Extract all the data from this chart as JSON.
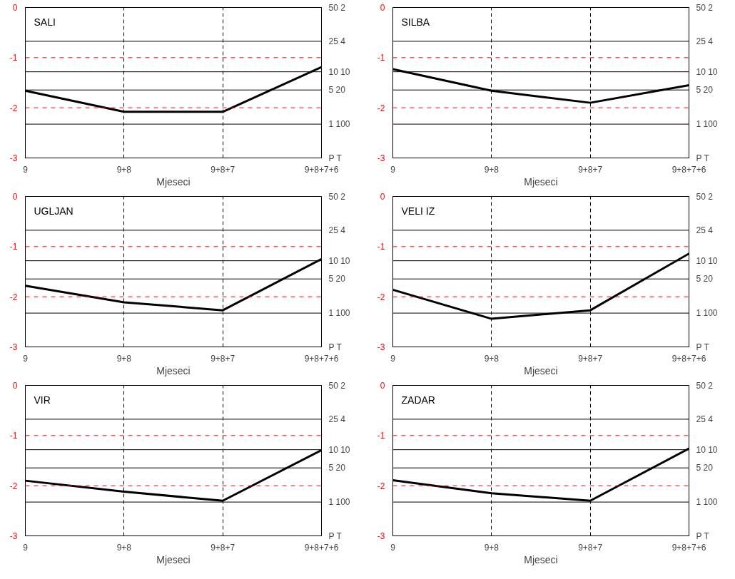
{
  "chart_data": [
    {
      "type": "line",
      "title": "SALI",
      "annotations": [
        "50 2",
        "25 4",
        "10 10",
        "5 20",
        "1 100",
        "P T"
      ],
      "xlabel": "Mjeseci",
      "categories": [
        "9",
        "9+8",
        "9+8+7",
        "9+8+7+6"
      ],
      "series": [
        {
          "color": "#000000",
          "values": [
            -1.66,
            -2.08,
            -2.08,
            -1.19
          ]
        }
      ],
      "ylim": [
        -3,
        0
      ],
      "yticks": [
        0,
        -1,
        -2,
        -3
      ],
      "ref_lines": [
        {
          "axis": "y",
          "value": -0.674,
          "color": "#000000"
        },
        {
          "axis": "y",
          "value": -1.282,
          "color": "#000000"
        },
        {
          "axis": "y",
          "value": -1.645,
          "color": "#000000"
        },
        {
          "axis": "y",
          "value": -2.326,
          "color": "#000000"
        },
        {
          "axis": "y",
          "value": -1,
          "color": "#ff0000",
          "line_style": "dashed"
        },
        {
          "axis": "y",
          "value": -2,
          "color": "#ff0000",
          "line_style": "dashed"
        }
      ],
      "grid": "x",
      "marker": "none",
      "line_style": "solid"
    },
    {
      "type": "line",
      "title": "SILBA",
      "annotations": [
        "50 2",
        "25 4",
        "10 10",
        "5 20",
        "1 100",
        "P T"
      ],
      "xlabel": "Mjeseci",
      "categories": [
        "9",
        "9+8",
        "9+8+7",
        "9+8+7+6"
      ],
      "series": [
        {
          "color": "#000000",
          "values": [
            -1.23,
            -1.66,
            -1.9,
            -1.55
          ]
        }
      ],
      "ylim": [
        -3,
        0
      ],
      "yticks": [
        0,
        -1,
        -2,
        -3
      ],
      "ref_lines": [
        {
          "axis": "y",
          "value": -0.674,
          "color": "#000000"
        },
        {
          "axis": "y",
          "value": -1.282,
          "color": "#000000"
        },
        {
          "axis": "y",
          "value": -1.645,
          "color": "#000000"
        },
        {
          "axis": "y",
          "value": -2.326,
          "color": "#000000"
        },
        {
          "axis": "y",
          "value": -1,
          "color": "#ff0000",
          "line_style": "dashed"
        },
        {
          "axis": "y",
          "value": -2,
          "color": "#ff0000",
          "line_style": "dashed"
        }
      ],
      "grid": "x",
      "marker": "none",
      "line_style": "solid"
    },
    {
      "type": "line",
      "title": "UGLJAN",
      "annotations": [
        "50 2",
        "25 4",
        "10 10",
        "5 20",
        "1 100",
        "P T"
      ],
      "xlabel": "Mjeseci",
      "categories": [
        "9",
        "9+8",
        "9+8+7",
        "9+8+7+6"
      ],
      "series": [
        {
          "color": "#000000",
          "values": [
            -1.78,
            -2.11,
            -2.27,
            -1.25
          ]
        }
      ],
      "ylim": [
        -3,
        0
      ],
      "yticks": [
        0,
        -1,
        -2,
        -3
      ],
      "ref_lines": [
        {
          "axis": "y",
          "value": -0.674,
          "color": "#000000"
        },
        {
          "axis": "y",
          "value": -1.282,
          "color": "#000000"
        },
        {
          "axis": "y",
          "value": -1.645,
          "color": "#000000"
        },
        {
          "axis": "y",
          "value": -2.326,
          "color": "#000000"
        },
        {
          "axis": "y",
          "value": -1,
          "color": "#ff0000",
          "line_style": "dashed"
        },
        {
          "axis": "y",
          "value": -2,
          "color": "#ff0000",
          "line_style": "dashed"
        }
      ],
      "grid": "x",
      "marker": "none",
      "line_style": "solid"
    },
    {
      "type": "line",
      "title": "VELI IZ",
      "annotations": [
        "50 2",
        "25 4",
        "10 10",
        "5 20",
        "1 100",
        "P T"
      ],
      "xlabel": "Mjeseci",
      "categories": [
        "9",
        "9+8",
        "9+8+7",
        "9+8+7+6"
      ],
      "series": [
        {
          "color": "#000000",
          "values": [
            -1.86,
            -2.44,
            -2.27,
            -1.14
          ]
        }
      ],
      "ylim": [
        -3,
        0
      ],
      "yticks": [
        0,
        -1,
        -2,
        -3
      ],
      "ref_lines": [
        {
          "axis": "y",
          "value": -0.674,
          "color": "#000000"
        },
        {
          "axis": "y",
          "value": -1.282,
          "color": "#000000"
        },
        {
          "axis": "y",
          "value": -1.645,
          "color": "#000000"
        },
        {
          "axis": "y",
          "value": -2.326,
          "color": "#000000"
        },
        {
          "axis": "y",
          "value": -1,
          "color": "#ff0000",
          "line_style": "dashed"
        },
        {
          "axis": "y",
          "value": -2,
          "color": "#ff0000",
          "line_style": "dashed"
        }
      ],
      "grid": "x",
      "marker": "none",
      "line_style": "solid"
    },
    {
      "type": "line",
      "title": "VIR",
      "annotations": [
        "50 2",
        "25 4",
        "10 10",
        "5 20",
        "1 100",
        "P T"
      ],
      "xlabel": "Mjeseci",
      "categories": [
        "9",
        "9+8",
        "9+8+7",
        "9+8+7+6"
      ],
      "series": [
        {
          "color": "#000000",
          "values": [
            -1.9,
            -2.12,
            -2.3,
            -1.29
          ]
        }
      ],
      "ylim": [
        -3,
        0
      ],
      "yticks": [
        0,
        -1,
        -2,
        -3
      ],
      "ref_lines": [
        {
          "axis": "y",
          "value": -0.674,
          "color": "#000000"
        },
        {
          "axis": "y",
          "value": -1.282,
          "color": "#000000"
        },
        {
          "axis": "y",
          "value": -1.645,
          "color": "#000000"
        },
        {
          "axis": "y",
          "value": -2.326,
          "color": "#000000"
        },
        {
          "axis": "y",
          "value": -1,
          "color": "#ff0000",
          "line_style": "dashed"
        },
        {
          "axis": "y",
          "value": -2,
          "color": "#ff0000",
          "line_style": "dashed"
        }
      ],
      "grid": "x",
      "marker": "none",
      "line_style": "solid"
    },
    {
      "type": "line",
      "title": "ZADAR",
      "annotations": [
        "50 2",
        "25 4",
        "10 10",
        "5 20",
        "1 100",
        "P T"
      ],
      "xlabel": "Mjeseci",
      "categories": [
        "9",
        "9+8",
        "9+8+7",
        "9+8+7+6"
      ],
      "series": [
        {
          "color": "#000000",
          "values": [
            -1.89,
            -2.15,
            -2.3,
            -1.26
          ]
        }
      ],
      "ylim": [
        -3,
        0
      ],
      "yticks": [
        0,
        -1,
        -2,
        -3
      ],
      "ref_lines": [
        {
          "axis": "y",
          "value": -0.674,
          "color": "#000000"
        },
        {
          "axis": "y",
          "value": -1.282,
          "color": "#000000"
        },
        {
          "axis": "y",
          "value": -1.645,
          "color": "#000000"
        },
        {
          "axis": "y",
          "value": -2.326,
          "color": "#000000"
        },
        {
          "axis": "y",
          "value": -1,
          "color": "#ff0000",
          "line_style": "dashed"
        },
        {
          "axis": "y",
          "value": -2,
          "color": "#ff0000",
          "line_style": "dashed"
        }
      ],
      "grid": "x",
      "marker": "none",
      "line_style": "solid"
    }
  ]
}
